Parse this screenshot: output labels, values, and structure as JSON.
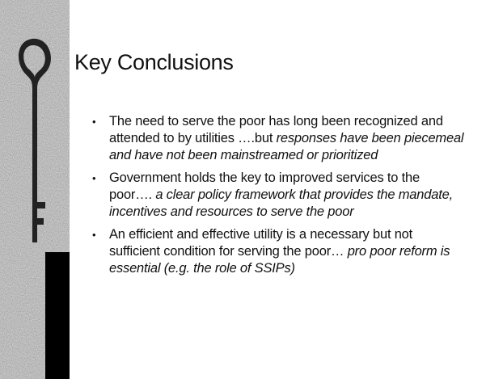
{
  "title": "Key Conclusions",
  "bullets": [
    {
      "text": "The need to serve the poor has long been recognized and attended to by utilities ….but",
      "emphasis": "responses have been piecemeal and have not been mainstreamed or prioritized"
    },
    {
      "text": "Government holds the key to improved services to the poor….",
      "emphasis": "a clear policy framework that provides the mandate, incentives and resources to serve the poor"
    },
    {
      "text": "An efficient and effective utility is a necessary but not sufficient condition for serving the poor…",
      "emphasis": "pro poor reform is essential (e.g. the role of SSIPs)"
    }
  ]
}
